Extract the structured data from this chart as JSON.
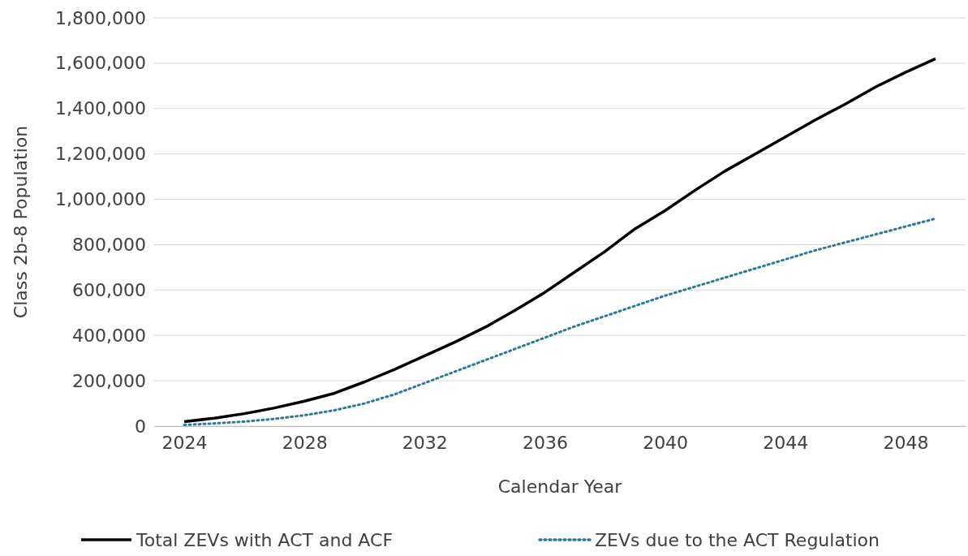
{
  "chart_data": {
    "type": "line",
    "xlabel": "Calendar Year",
    "ylabel": "Class 2b-8 Population",
    "x": [
      2024,
      2025,
      2026,
      2027,
      2028,
      2029,
      2030,
      2031,
      2032,
      2033,
      2034,
      2035,
      2036,
      2037,
      2038,
      2039,
      2040,
      2041,
      2042,
      2043,
      2044,
      2045,
      2046,
      2047,
      2048,
      2049
    ],
    "series": [
      {
        "name": "Total ZEVs with ACT and ACF",
        "color": "#000000",
        "line_style": "solid",
        "values": [
          20000,
          35000,
          55000,
          80000,
          110000,
          145000,
          195000,
          250000,
          310000,
          370000,
          435000,
          510000,
          590000,
          680000,
          770000,
          870000,
          950000,
          1040000,
          1125000,
          1200000,
          1275000,
          1350000,
          1420000,
          1495000,
          1560000,
          1620000
        ]
      },
      {
        "name": "ZEVs due to the ACT Regulation",
        "color": "#2b7a96",
        "line_style": "dotted",
        "values": [
          5000,
          12000,
          20000,
          32000,
          48000,
          70000,
          100000,
          140000,
          190000,
          240000,
          290000,
          340000,
          390000,
          440000,
          485000,
          530000,
          575000,
          615000,
          655000,
          695000,
          735000,
          775000,
          810000,
          845000,
          880000,
          915000
        ]
      }
    ],
    "xlim": [
      2023,
      2050
    ],
    "xticks": [
      2024,
      2028,
      2032,
      2036,
      2040,
      2044,
      2048
    ],
    "ylim": [
      0,
      1800000
    ],
    "yticks": [
      {
        "value": 0,
        "label": "0"
      },
      {
        "value": 200000,
        "label": "200,000"
      },
      {
        "value": 400000,
        "label": "400,000"
      },
      {
        "value": 600000,
        "label": "600,000"
      },
      {
        "value": 800000,
        "label": "800,000"
      },
      {
        "value": 1000000,
        "label": "1,000,000"
      },
      {
        "value": 1200000,
        "label": "1,200,000"
      },
      {
        "value": 1400000,
        "label": "1,400,000"
      },
      {
        "value": 1600000,
        "label": "1,600,000"
      },
      {
        "value": 1800000,
        "label": "1,800,000"
      }
    ],
    "grid": "y",
    "legend": "bottom"
  }
}
